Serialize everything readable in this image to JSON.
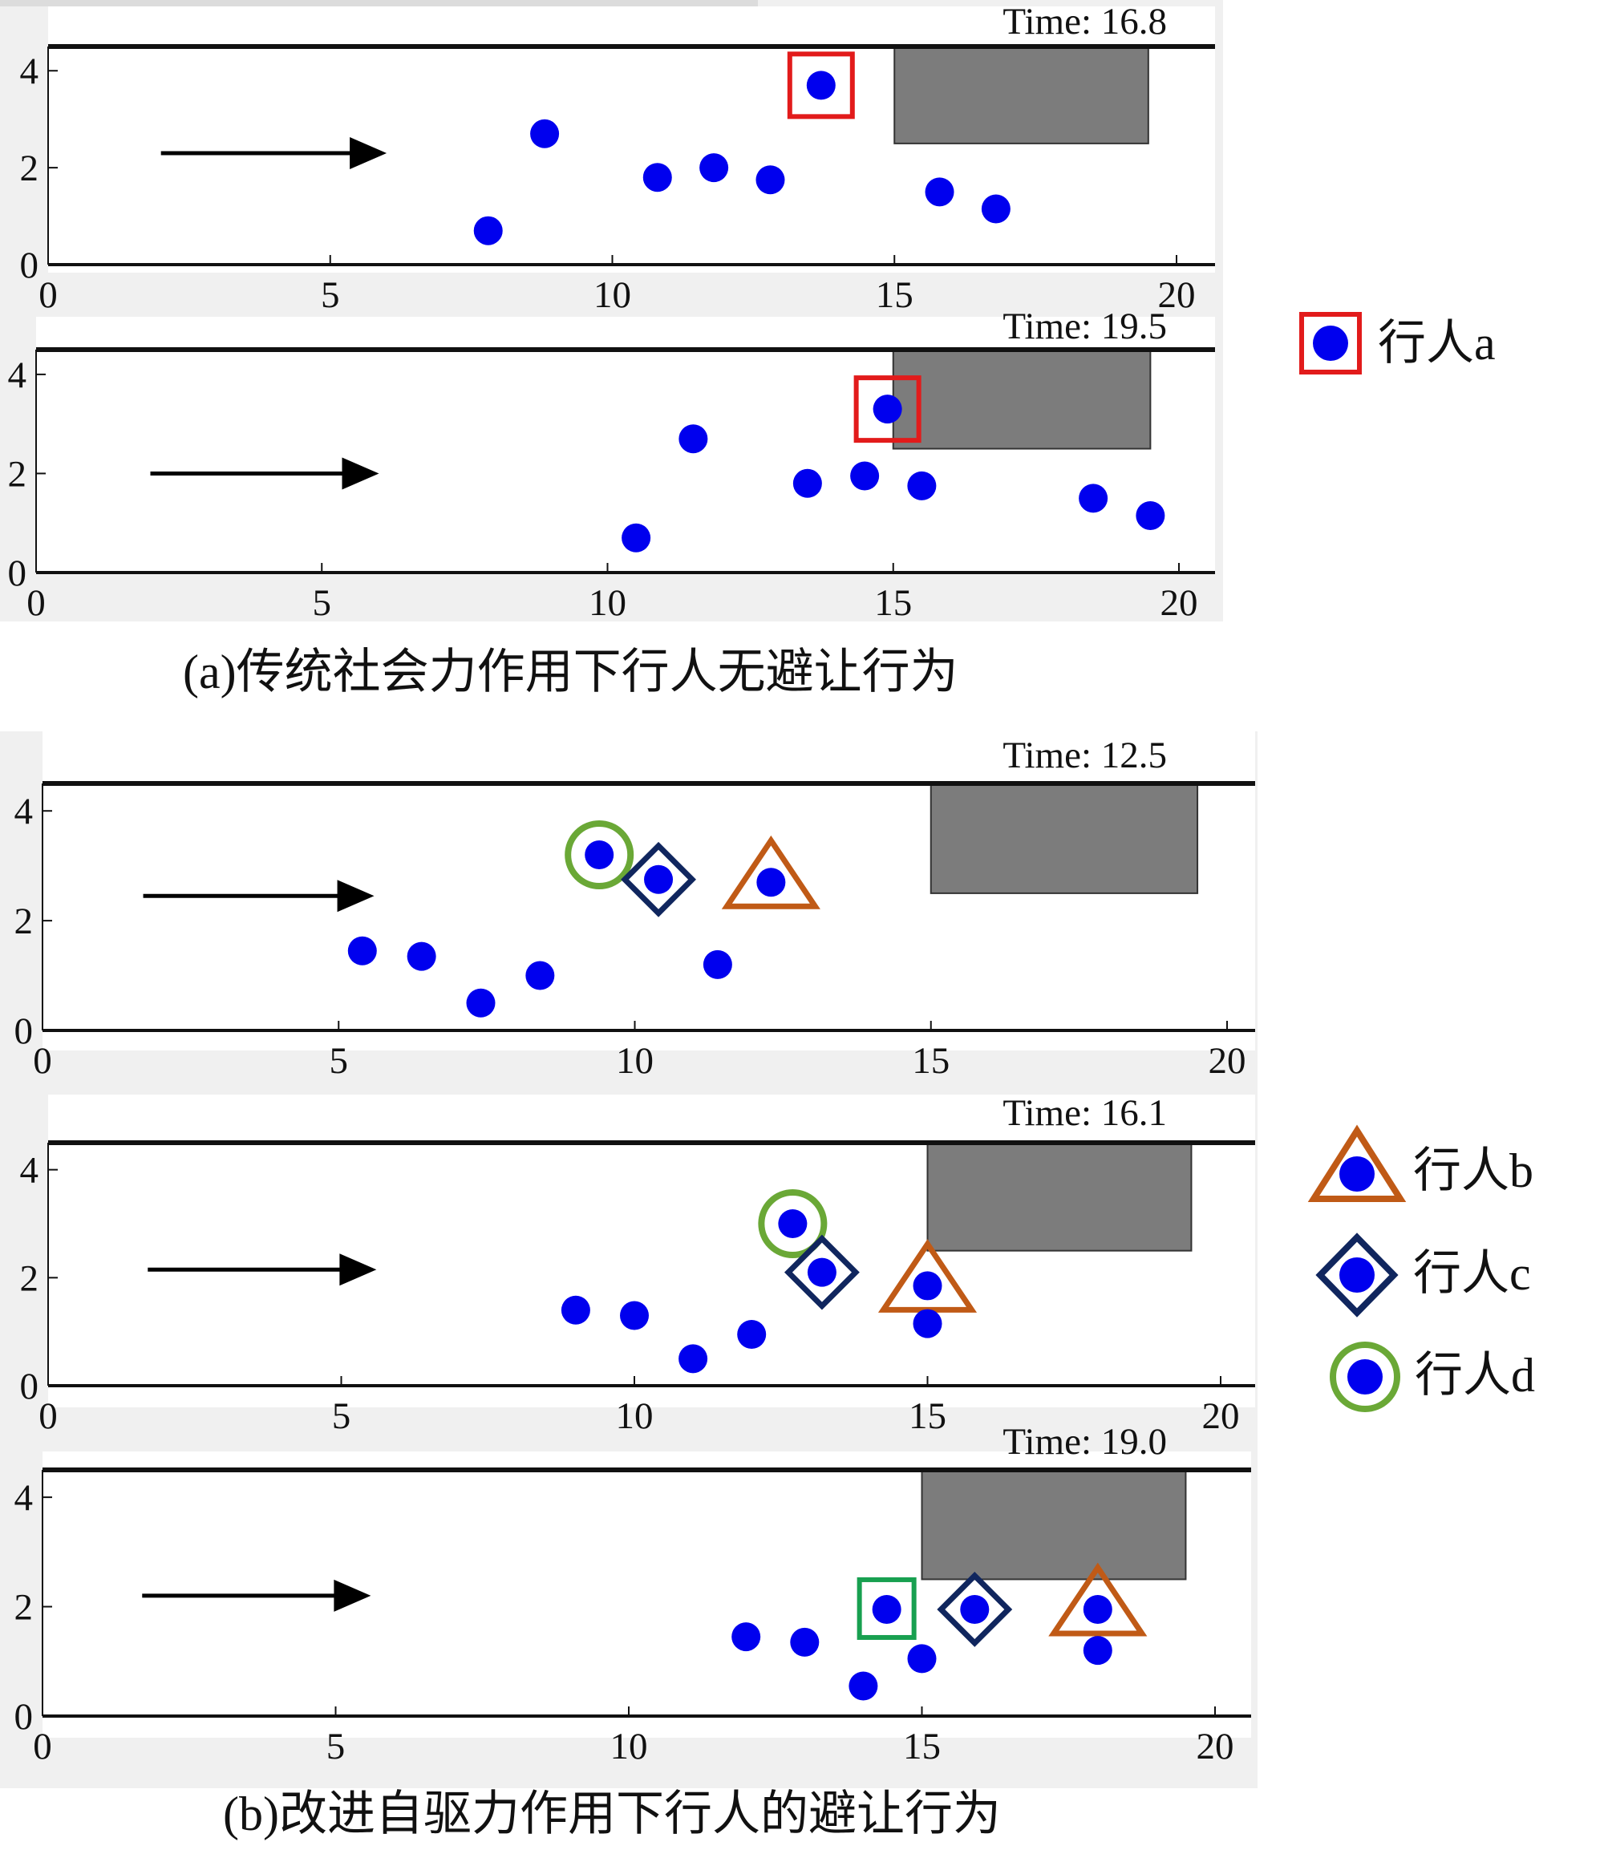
{
  "figure": {
    "caption_a": "(a)传统社会力作用下行人无避让行为",
    "caption_b": "(b)改进自驱力作用下行人的避让行为"
  },
  "legend": {
    "a": {
      "label": "行人a",
      "marker": "square",
      "color": "#e21b1b"
    },
    "b": {
      "label": "行人b",
      "marker": "triangle",
      "color": "#c05a16"
    },
    "c": {
      "label": "行人c",
      "marker": "diamond",
      "color": "#10265e"
    },
    "d": {
      "label": "行人d",
      "marker": "circle-ring",
      "color": "#6aa836"
    }
  },
  "colors": {
    "pedestrian": "#0000ee",
    "obstacle": "#7c7c7c",
    "wall": "#111111",
    "panel_bg": "#f0f0f0",
    "extra_square": "#18a050"
  },
  "chart_data": [
    {
      "id": "a1",
      "type": "scatter",
      "title": "Time: 16.8",
      "xlim": [
        0,
        20
      ],
      "ylim": [
        0,
        4.5
      ],
      "xticks": [
        0,
        5,
        10,
        15,
        20
      ],
      "yticks": [
        0,
        2,
        4
      ],
      "obstacle": {
        "x": [
          15,
          19.5
        ],
        "y": [
          2.5,
          4.5
        ]
      },
      "flow_arrow": {
        "from": 2,
        "to": 6,
        "y": 2.3
      },
      "pedestrians": [
        {
          "x": 7.8,
          "y": 0.7
        },
        {
          "x": 8.8,
          "y": 2.7
        },
        {
          "x": 10.8,
          "y": 1.8
        },
        {
          "x": 11.8,
          "y": 2.0
        },
        {
          "x": 12.8,
          "y": 1.75
        },
        {
          "x": 13.7,
          "y": 3.7,
          "marker": "a"
        },
        {
          "x": 15.8,
          "y": 1.5
        },
        {
          "x": 16.8,
          "y": 1.15
        }
      ]
    },
    {
      "id": "a2",
      "type": "scatter",
      "title": "Time: 19.5",
      "xlim": [
        0,
        20
      ],
      "ylim": [
        0,
        4.5
      ],
      "xticks": [
        0,
        5,
        10,
        15,
        20
      ],
      "yticks": [
        0,
        2,
        4
      ],
      "obstacle": {
        "x": [
          15,
          19.5
        ],
        "y": [
          2.5,
          4.5
        ]
      },
      "flow_arrow": {
        "from": 2,
        "to": 6,
        "y": 2.0
      },
      "pedestrians": [
        {
          "x": 10.5,
          "y": 0.7
        },
        {
          "x": 11.5,
          "y": 2.7
        },
        {
          "x": 13.5,
          "y": 1.8
        },
        {
          "x": 14.5,
          "y": 1.95
        },
        {
          "x": 14.9,
          "y": 3.3,
          "marker": "a"
        },
        {
          "x": 15.5,
          "y": 1.75
        },
        {
          "x": 18.5,
          "y": 1.5
        },
        {
          "x": 19.5,
          "y": 1.15
        }
      ]
    },
    {
      "id": "b1",
      "type": "scatter",
      "title": "Time: 12.5",
      "xlim": [
        0,
        20
      ],
      "ylim": [
        0,
        4.5
      ],
      "xticks": [
        0,
        5,
        10,
        15,
        20
      ],
      "yticks": [
        0,
        2,
        4
      ],
      "obstacle": {
        "x": [
          15,
          19.5
        ],
        "y": [
          2.5,
          4.5
        ]
      },
      "flow_arrow": {
        "from": 1.7,
        "to": 5.6,
        "y": 2.45
      },
      "pedestrians": [
        {
          "x": 5.4,
          "y": 1.45
        },
        {
          "x": 6.4,
          "y": 1.35
        },
        {
          "x": 7.4,
          "y": 0.5
        },
        {
          "x": 8.4,
          "y": 1.0
        },
        {
          "x": 9.4,
          "y": 3.2,
          "marker": "d"
        },
        {
          "x": 10.4,
          "y": 2.75,
          "marker": "c"
        },
        {
          "x": 11.4,
          "y": 1.2
        },
        {
          "x": 12.3,
          "y": 2.7,
          "marker": "b"
        }
      ]
    },
    {
      "id": "b2",
      "type": "scatter",
      "title": "Time: 16.1",
      "xlim": [
        0,
        20
      ],
      "ylim": [
        0,
        4.5
      ],
      "xticks": [
        0,
        5,
        10,
        15,
        20
      ],
      "yticks": [
        0,
        2,
        4
      ],
      "obstacle": {
        "x": [
          15,
          19.5
        ],
        "y": [
          2.5,
          4.5
        ]
      },
      "flow_arrow": {
        "from": 1.7,
        "to": 5.6,
        "y": 2.15
      },
      "pedestrians": [
        {
          "x": 9.0,
          "y": 1.4
        },
        {
          "x": 10.0,
          "y": 1.3
        },
        {
          "x": 11.0,
          "y": 0.5
        },
        {
          "x": 12.0,
          "y": 0.95
        },
        {
          "x": 12.7,
          "y": 3.0,
          "marker": "d"
        },
        {
          "x": 13.2,
          "y": 2.1,
          "marker": "c"
        },
        {
          "x": 15.0,
          "y": 1.85,
          "marker": "b"
        },
        {
          "x": 15.0,
          "y": 1.15
        }
      ]
    },
    {
      "id": "b3",
      "type": "scatter",
      "title": "Time: 19.0",
      "xlim": [
        0,
        20
      ],
      "ylim": [
        0,
        4.5
      ],
      "xticks": [
        0,
        5,
        10,
        15,
        20
      ],
      "yticks": [
        0,
        2,
        4
      ],
      "obstacle": {
        "x": [
          15,
          19.5
        ],
        "y": [
          2.5,
          4.5
        ]
      },
      "flow_arrow": {
        "from": 1.7,
        "to": 5.6,
        "y": 2.2
      },
      "pedestrians": [
        {
          "x": 12.0,
          "y": 1.45
        },
        {
          "x": 13.0,
          "y": 1.35
        },
        {
          "x": 14.0,
          "y": 0.55
        },
        {
          "x": 14.4,
          "y": 1.95,
          "marker": "square-green"
        },
        {
          "x": 15.0,
          "y": 1.05
        },
        {
          "x": 15.9,
          "y": 1.95,
          "marker": "c"
        },
        {
          "x": 18.0,
          "y": 1.95,
          "marker": "b"
        },
        {
          "x": 18.0,
          "y": 1.2
        }
      ]
    }
  ]
}
